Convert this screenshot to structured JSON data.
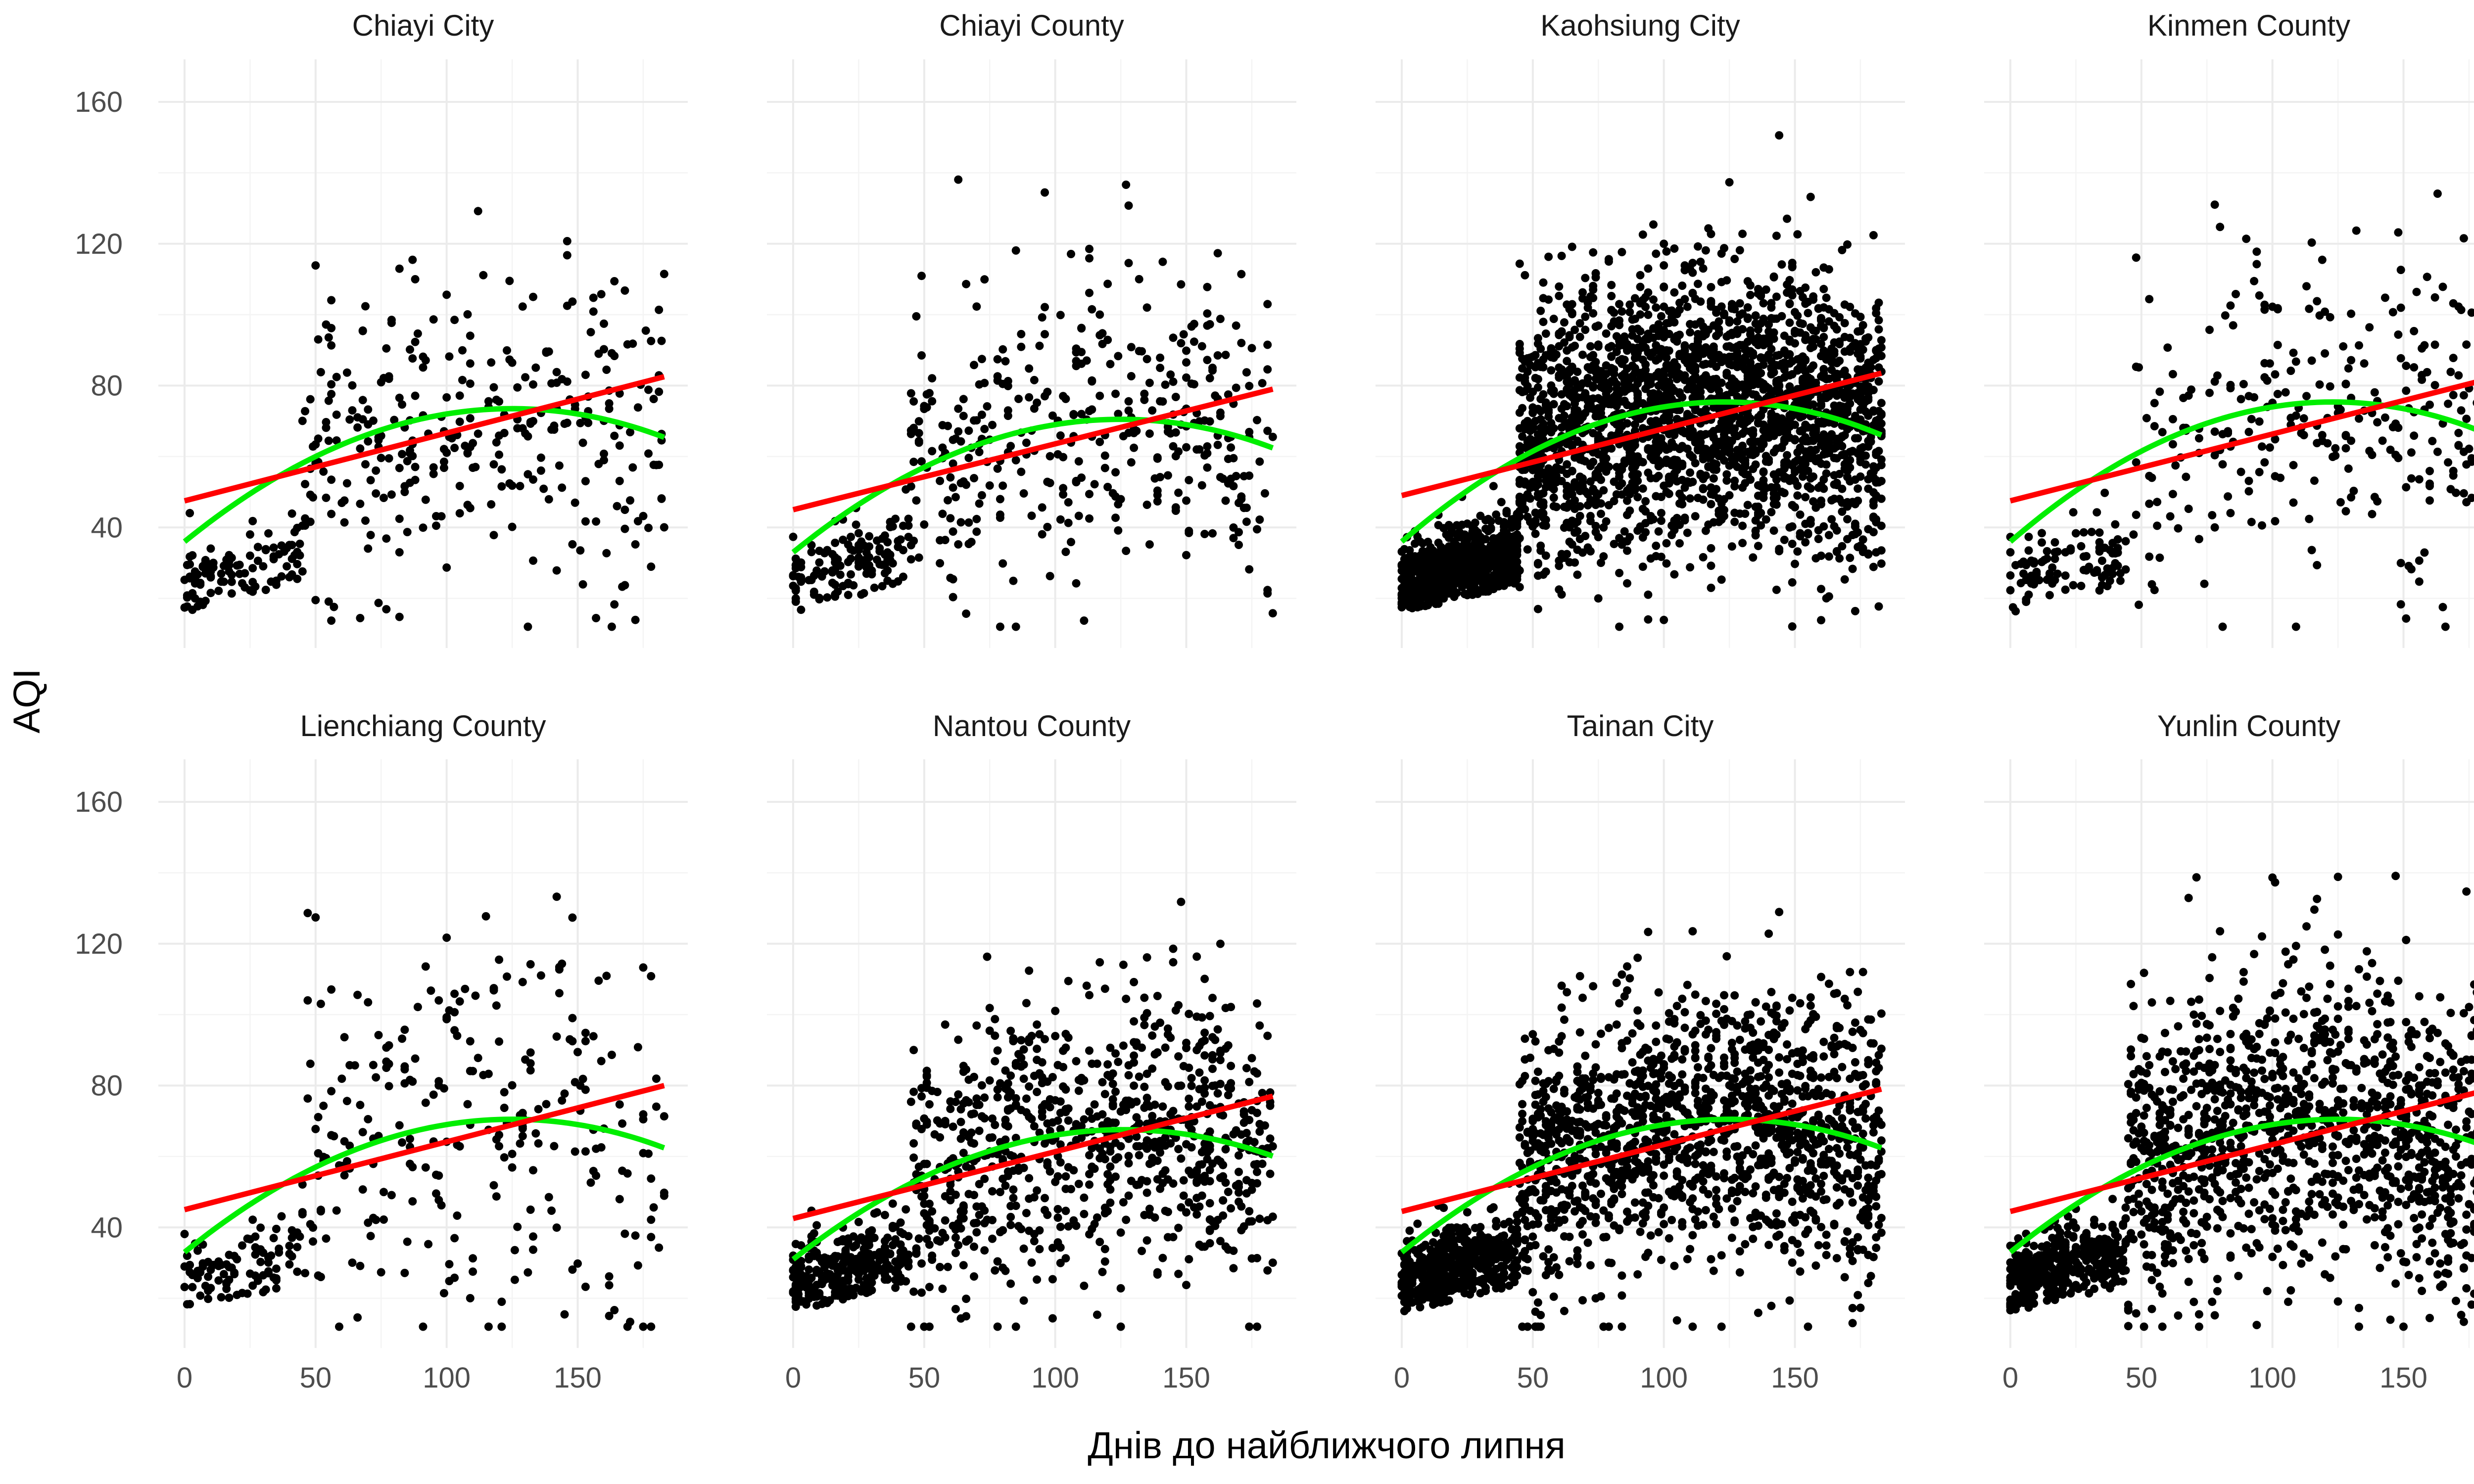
{
  "chart_data": {
    "type": "scatter",
    "layout": "facet-grid 2x4",
    "xlabel": "Днів до найближчого липня",
    "ylabel": "AQI",
    "xlim": [
      -10,
      192
    ],
    "ylim": [
      6,
      172
    ],
    "x_ticks": [
      0,
      50,
      100,
      150
    ],
    "y_ticks": [
      40,
      80,
      120,
      160
    ],
    "grid": true,
    "colors": {
      "linear_fit": "#ff0000",
      "quadratic_fit": "#00ee00",
      "points": "#000000"
    },
    "panels": [
      {
        "name": "Chiayi City",
        "linear_fit": [
          47.5,
          82.5
        ],
        "quadratic_fit": [
          36,
          0.6,
          -0.0024
        ],
        "n_points": 420,
        "point_spread": 22
      },
      {
        "name": "Chiayi County",
        "linear_fit": [
          45.0,
          79.0
        ],
        "quadratic_fit": [
          33,
          0.6,
          -0.0024
        ],
        "n_points": 520,
        "point_spread": 22
      },
      {
        "name": "Kaohsiung City",
        "linear_fit": [
          49.0,
          83.5
        ],
        "quadratic_fit": [
          36,
          0.64,
          -0.0026
        ],
        "n_points": 3000,
        "point_spread": 20
      },
      {
        "name": "Kinmen County",
        "linear_fit": [
          47.5,
          82.0
        ],
        "quadratic_fit": [
          36,
          0.64,
          -0.0026
        ],
        "n_points": 380,
        "point_spread": 24
      },
      {
        "name": "Lienchiang County",
        "linear_fit": [
          45.0,
          80.0
        ],
        "quadratic_fit": [
          33,
          0.6,
          -0.0024
        ],
        "n_points": 360,
        "point_spread": 30
      },
      {
        "name": "Nantou County",
        "linear_fit": [
          42.5,
          77.0
        ],
        "quadratic_fit": [
          31,
          0.58,
          -0.0023
        ],
        "n_points": 1100,
        "point_spread": 20
      },
      {
        "name": "Tainan City",
        "linear_fit": [
          44.5,
          79.0
        ],
        "quadratic_fit": [
          33,
          0.6,
          -0.0024
        ],
        "n_points": 1800,
        "point_spread": 20
      },
      {
        "name": "Yunlin County",
        "linear_fit": [
          44.5,
          79.0
        ],
        "quadratic_fit": [
          33,
          0.6,
          -0.0024
        ],
        "n_points": 1600,
        "point_spread": 22
      }
    ]
  }
}
